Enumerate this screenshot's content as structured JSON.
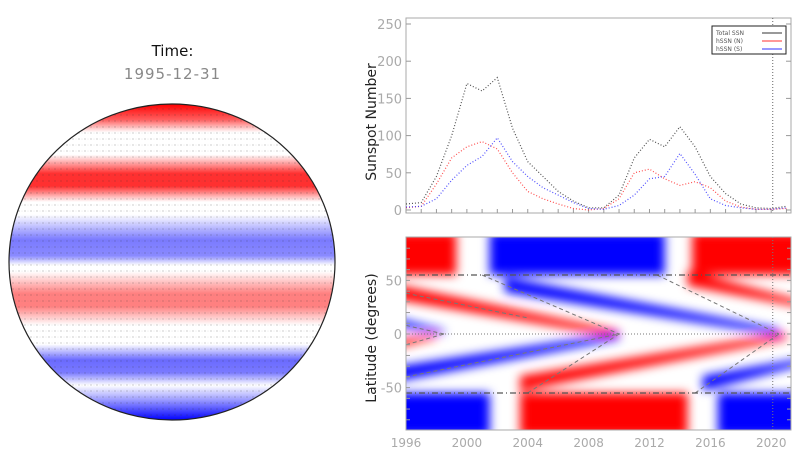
{
  "panel_title": {
    "label": "Time:",
    "value": "1995-12-31"
  },
  "colors": {
    "positive": "#ff0000",
    "negative": "#0000ff",
    "total": "#333333",
    "axis": "#999999"
  },
  "chart_data": [
    {
      "type": "line",
      "title": "",
      "xlabel": "",
      "ylabel": "Sunspot Number",
      "xlim": [
        1996,
        2021.3
      ],
      "ylim": [
        0,
        250
      ],
      "yticks": [
        "0",
        "50",
        "100",
        "150",
        "200",
        "250"
      ],
      "legend": "top-right",
      "marker_year": 2020.1,
      "x": [
        1996,
        1997,
        1998,
        1999,
        2000,
        2001,
        2002,
        2003,
        2004,
        2005,
        2006,
        2007,
        2008,
        2009,
        2010,
        2011,
        2012,
        2013,
        2014,
        2015,
        2016,
        2017,
        2018,
        2019,
        2020,
        2021
      ],
      "series": [
        {
          "name": "Total SSN",
          "color": "#333333",
          "values": [
            8,
            10,
            45,
            100,
            170,
            160,
            178,
            110,
            65,
            45,
            25,
            12,
            3,
            3,
            20,
            70,
            95,
            85,
            112,
            85,
            45,
            22,
            8,
            3,
            2,
            5
          ]
        },
        {
          "name": "hSSN (N)",
          "color": "#ff3030",
          "values": [
            3,
            5,
            35,
            70,
            85,
            92,
            82,
            50,
            25,
            15,
            8,
            2,
            0,
            2,
            15,
            50,
            55,
            42,
            33,
            38,
            30,
            12,
            4,
            1,
            1,
            2
          ]
        },
        {
          "name": "hSSN (S)",
          "color": "#3030ff",
          "values": [
            4,
            5,
            15,
            40,
            60,
            72,
            97,
            65,
            45,
            30,
            20,
            10,
            2,
            1,
            6,
            20,
            42,
            45,
            76,
            48,
            15,
            6,
            3,
            1,
            1,
            3
          ]
        }
      ]
    },
    {
      "type": "heatmap",
      "title": "",
      "xlabel": "",
      "ylabel": "Latitude (degrees)",
      "xlim": [
        1996,
        2021.3
      ],
      "ylim": [
        -90,
        90
      ],
      "xticks": [
        "1996",
        "2000",
        "2004",
        "2008",
        "2012",
        "2016",
        "2020"
      ],
      "yticks": [
        "50",
        "0",
        "-50"
      ],
      "boundary_latitudes": [
        55,
        -55
      ],
      "marker_year": 2020.1
    }
  ]
}
